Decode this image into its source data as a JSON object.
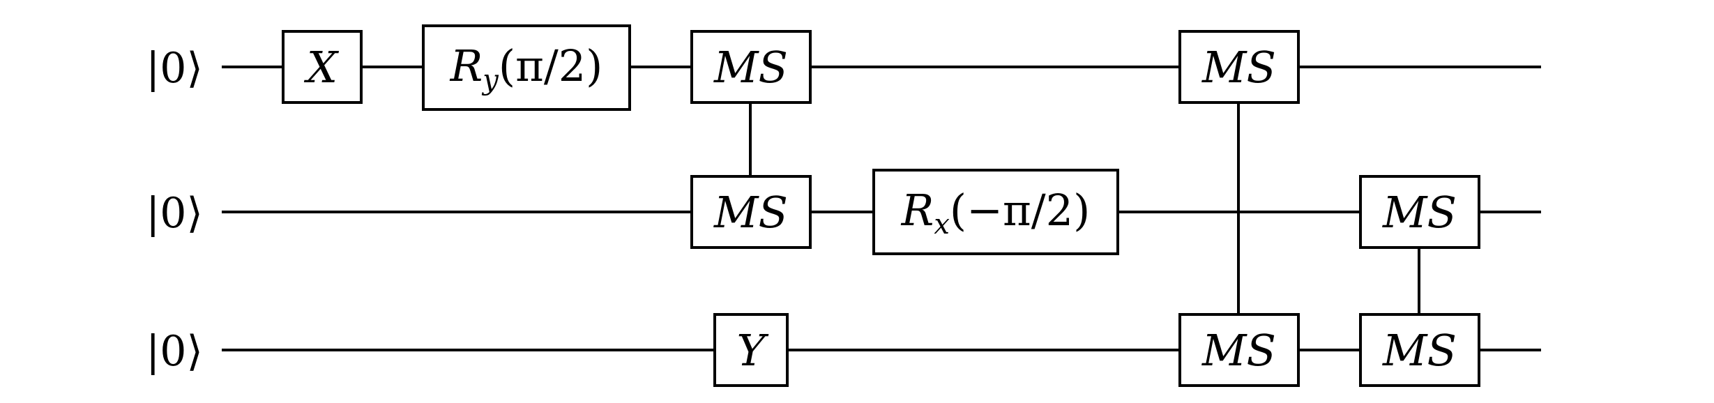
{
  "qubits": [
    {
      "ket": "|0⟩"
    },
    {
      "ket": "|0⟩"
    },
    {
      "ket": "|0⟩"
    }
  ],
  "gates": [
    {
      "qubit": 0,
      "label": "X"
    },
    {
      "qubit": 0,
      "label": "R_y(π/2)",
      "base": "R",
      "sub": "y",
      "arg": "(π/2)"
    },
    {
      "qubit": 0,
      "label": "MS"
    },
    {
      "qubit": 1,
      "label": "MS"
    },
    {
      "qubit": 2,
      "label": "Y"
    },
    {
      "qubit": 1,
      "label": "R_x(−π/2)",
      "base": "R",
      "sub": "x",
      "arg": "(−π/2)"
    },
    {
      "qubit": 0,
      "label": "MS"
    },
    {
      "qubit": 2,
      "label": "MS"
    },
    {
      "qubit": 1,
      "label": "MS"
    },
    {
      "qubit": 2,
      "label": "MS"
    }
  ],
  "connections": [
    {
      "from_qubit": 0,
      "to_qubit": 1,
      "type": "MS"
    },
    {
      "from_qubit": 0,
      "to_qubit": 2,
      "type": "MS"
    },
    {
      "from_qubit": 1,
      "to_qubit": 2,
      "type": "MS"
    }
  ],
  "colors": {
    "line": "#000000",
    "background": "#ffffff"
  }
}
